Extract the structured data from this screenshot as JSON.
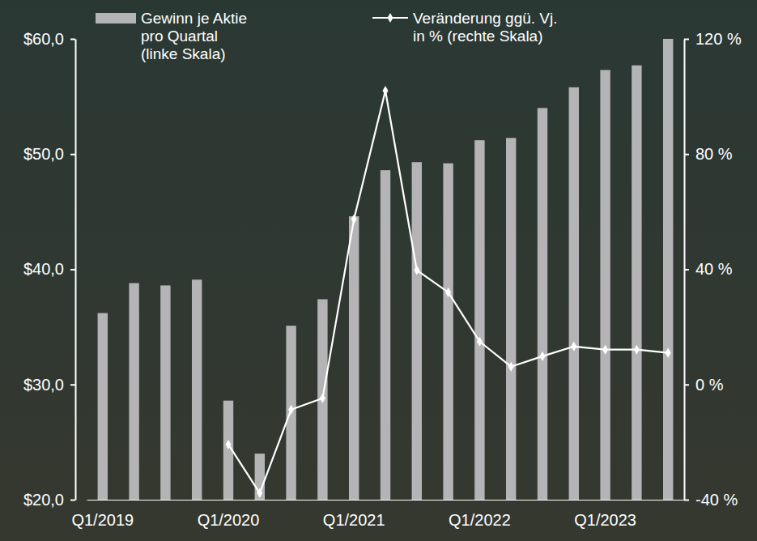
{
  "chart_data": {
    "type": "bar",
    "categories": [
      "Q1/2019",
      null,
      null,
      null,
      "Q1/2020",
      null,
      null,
      null,
      "Q1/2021",
      null,
      null,
      null,
      "Q1/2022",
      null,
      null,
      null,
      "Q1/2023",
      null,
      null
    ],
    "series": [
      {
        "name": "Gewinn je Aktie\npro Quartal\n(linke Skala)",
        "type": "bar",
        "color": "#b4b4b6",
        "values": [
          36.2,
          38.8,
          38.6,
          39.1,
          28.6,
          24.0,
          35.1,
          37.4,
          44.6,
          48.6,
          49.3,
          49.2,
          51.2,
          51.4,
          54.0,
          55.8,
          57.3,
          57.7,
          60.0
        ]
      },
      {
        "name": "Veränderung ggü. Vj.\nin % (rechte Skala)",
        "type": "line",
        "axis": "y2",
        "color": "#ffffff",
        "marker": "diamond",
        "values": [
          null,
          null,
          null,
          null,
          -20.8,
          -37.7,
          -8.7,
          -4.8,
          57.4,
          102.0,
          39.7,
          32.0,
          14.9,
          6.2,
          9.8,
          13.2,
          12.1,
          12.1,
          11.0
        ]
      }
    ],
    "ylim": [
      20,
      60
    ],
    "yticks": [
      {
        "value": 20,
        "label": "$20,0"
      },
      {
        "value": 30,
        "label": "$30,0"
      },
      {
        "value": 40,
        "label": "$40,0"
      },
      {
        "value": 50,
        "label": "$50,0"
      },
      {
        "value": 60,
        "label": "$60,0"
      }
    ],
    "y2lim": [
      -40,
      120
    ],
    "y2ticks": [
      {
        "value": -40,
        "label": "-40 %"
      },
      {
        "value": 0,
        "label": "0 %"
      },
      {
        "value": 40,
        "label": "40 %"
      },
      {
        "value": 80,
        "label": "80 %"
      },
      {
        "value": 120,
        "label": "120 %"
      }
    ],
    "grid": false,
    "legend": "top"
  }
}
